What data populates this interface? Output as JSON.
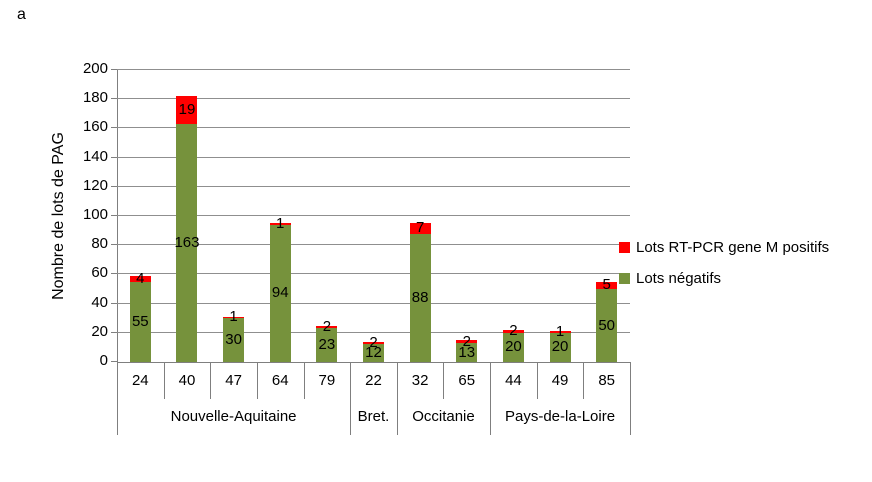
{
  "figure_label": "a",
  "chart_data": {
    "type": "bar",
    "stacked": true,
    "title": "",
    "xlabel": "",
    "ylabel": "Nombre de lots de PAG",
    "ylim": [
      0,
      200
    ],
    "ytick_step": 20,
    "grid": true,
    "legend_position": "right",
    "categories": [
      "24",
      "40",
      "47",
      "64",
      "79",
      "22",
      "32",
      "65",
      "44",
      "49",
      "85"
    ],
    "groups": [
      {
        "label": "Nouvelle-Aquitaine",
        "span": 5
      },
      {
        "label": "Bret.",
        "span": 1
      },
      {
        "label": "Occitanie",
        "span": 2
      },
      {
        "label": "Pays-de-la-Loire",
        "span": 3
      }
    ],
    "series": [
      {
        "name": "Lots négatifs",
        "color": "#76923C",
        "values": [
          55,
          163,
          30,
          94,
          23,
          12,
          88,
          13,
          20,
          20,
          50
        ]
      },
      {
        "name": "Lots RT-PCR gene M positifs",
        "color": "#FF0000",
        "values": [
          4,
          19,
          1,
          1,
          2,
          2,
          7,
          2,
          2,
          1,
          5
        ]
      }
    ],
    "data_labels_visible": true
  },
  "legend": {
    "items": [
      {
        "label": "Lots RT-PCR gene M positifs",
        "color": "#FF0000"
      },
      {
        "label": "Lots négatifs",
        "color": "#76923C"
      }
    ]
  },
  "colors": {
    "positive": "#FF0000",
    "negative": "#76923C",
    "gridline": "#8f8f8f",
    "axis": "#7f7f7f",
    "text": "#000000",
    "background": "#ffffff"
  }
}
